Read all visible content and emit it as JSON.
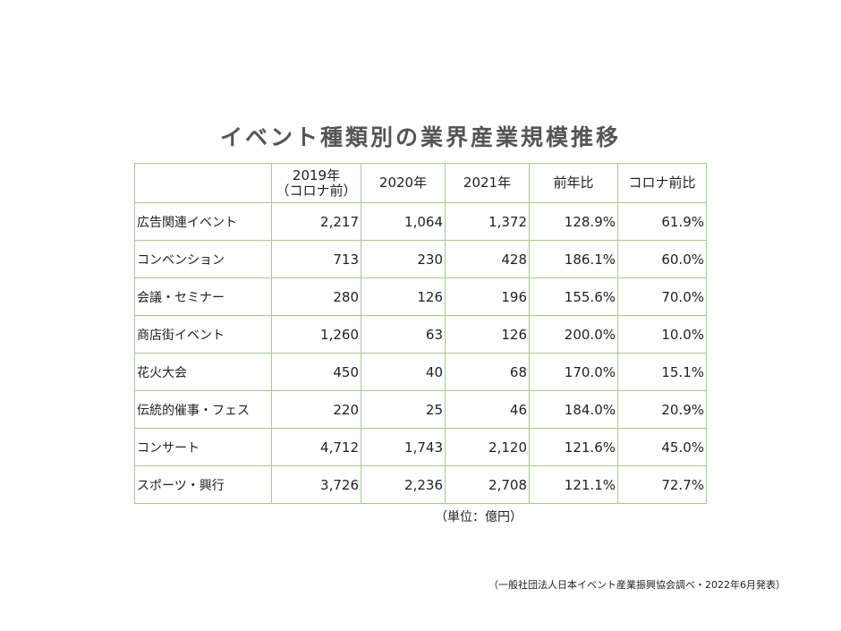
{
  "title": "イベント種類別の業界産業規模推移",
  "table": {
    "header": [
      [
        "2019年",
        "（コロナ前）"
      ],
      "2020年",
      "2021年",
      "前年比",
      "コロナ前比"
    ],
    "rows": [
      {
        "label": "広告関連イベント",
        "cells": [
          "2,217",
          "1,064",
          "1,372",
          "128.9%",
          "61.9%"
        ]
      },
      {
        "label": "コンベンション",
        "cells": [
          "713",
          "230",
          "428",
          "186.1%",
          "60.0%"
        ]
      },
      {
        "label": "会議・セミナー",
        "cells": [
          "280",
          "126",
          "196",
          "155.6%",
          "70.0%"
        ]
      },
      {
        "label": "商店街イベント",
        "cells": [
          "1,260",
          "63",
          "126",
          "200.0%",
          "10.0%"
        ]
      },
      {
        "label": "花火大会",
        "cells": [
          "450",
          "40",
          "68",
          "170.0%",
          "15.1%"
        ]
      },
      {
        "label": "伝統的催事・フェス",
        "cells": [
          "220",
          "25",
          "46",
          "184.0%",
          "20.9%"
        ]
      },
      {
        "label": "コンサート",
        "cells": [
          "4,712",
          "1,743",
          "2,120",
          "121.6%",
          "45.0%"
        ]
      },
      {
        "label": "スポーツ・興行",
        "cells": [
          "3,726",
          "2,236",
          "2,708",
          "121.1%",
          "72.7%"
        ]
      }
    ]
  },
  "unit_note": "（単位：億円）",
  "source": "（一般社団法人日本イベント産業振興協会調べ・2022年6月発表）"
}
